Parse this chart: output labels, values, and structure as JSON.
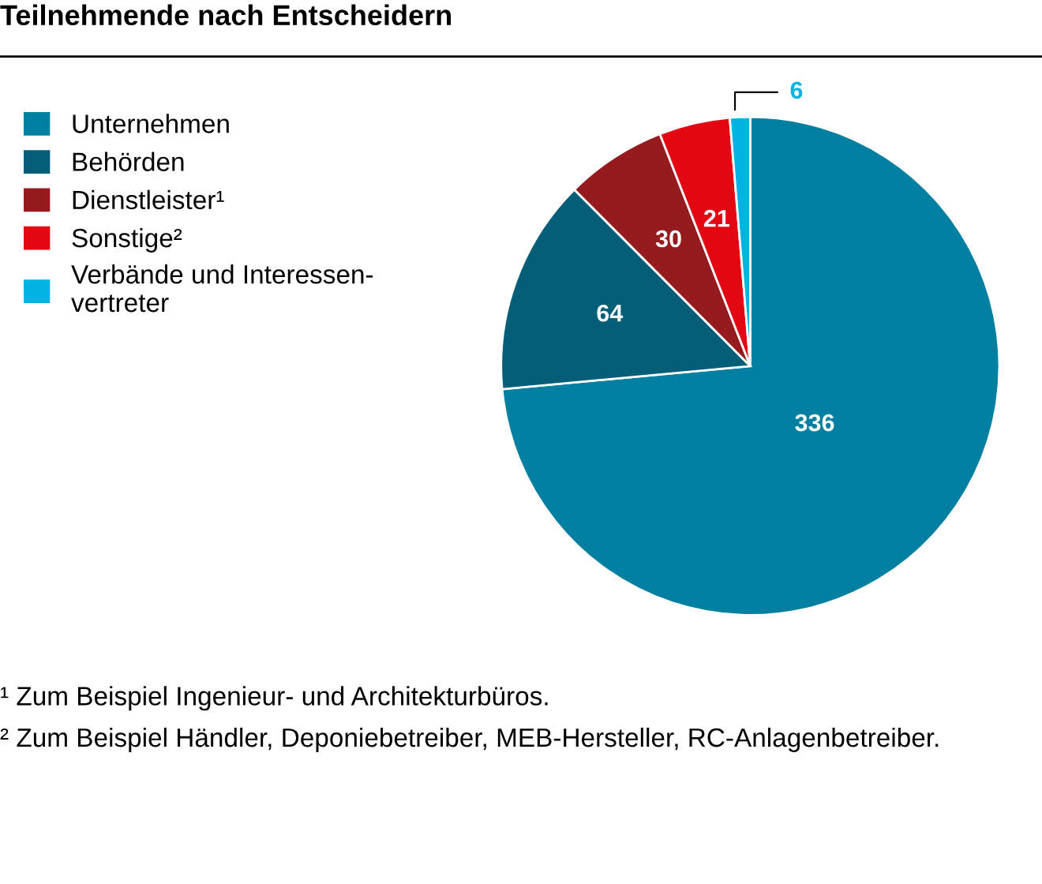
{
  "chart_data": {
    "type": "pie",
    "title": "Teilnehmende nach Entscheidern",
    "categories": [
      "Unternehmen",
      "Behörden",
      "Dienstleister¹",
      "Sonstige²",
      "Verbände und Interessen-\nvertreter"
    ],
    "values": [
      336,
      64,
      30,
      21,
      6
    ],
    "colors": [
      "#007fa0",
      "#045e78",
      "#951b1e",
      "#e30613",
      "#00b3e3"
    ],
    "data_labels": true,
    "legend": "left",
    "annotations": [
      "¹ Zum Beispiel Ingenieur- und Architekturbüros.",
      "² Zum Beispiel Händler, Deponiebetreiber, MEB-Hersteller, RC-Anlagenbetreiber."
    ]
  }
}
